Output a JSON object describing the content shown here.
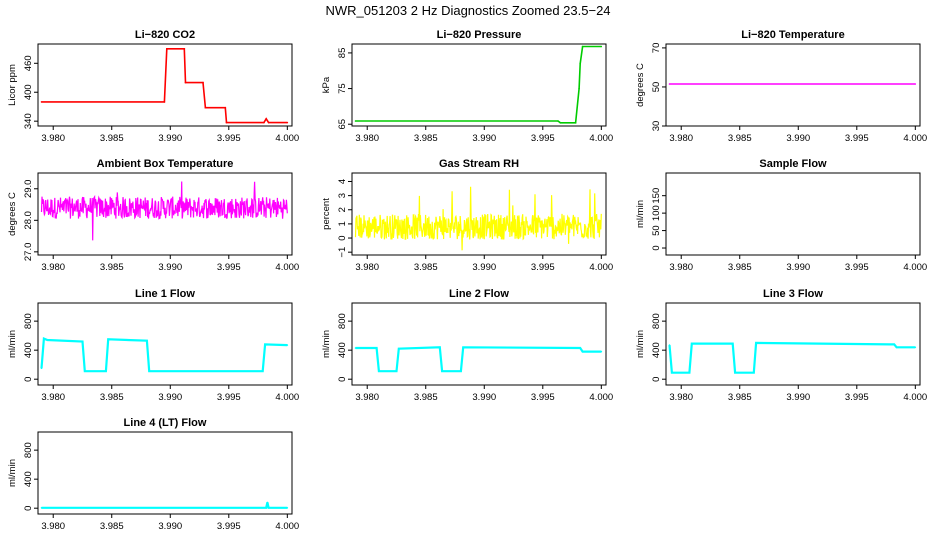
{
  "figure_title": "NWR_051203  2 Hz Diagnostics Zoomed 23.5−24",
  "chart_data": [
    {
      "type": "line",
      "title": "Li−820 CO2",
      "ylabel": "Licor ppm",
      "color": "#ff0000",
      "xlim": [
        3.9787,
        4.0004
      ],
      "ylim": [
        330,
        500
      ],
      "xticks": [
        "3.980",
        "3.985",
        "3.990",
        "3.995",
        "4.000"
      ],
      "yticks": [
        340,
        400,
        460
      ],
      "x": [
        3.979,
        3.9895,
        3.9897,
        3.9912,
        3.9913,
        3.9928,
        3.993,
        3.9947,
        3.9948,
        3.998,
        3.9982,
        3.9984,
        4.0
      ],
      "y": [
        380,
        380,
        490,
        490,
        420,
        420,
        368,
        368,
        337,
        337,
        345,
        337,
        337
      ]
    },
    {
      "type": "line",
      "title": "Li−820 Pressure",
      "ylabel": "kPa",
      "color": "#00cc00",
      "xlim": [
        3.9787,
        4.0004
      ],
      "ylim": [
        64.5,
        87.5
      ],
      "xticks": [
        "3.980",
        "3.985",
        "3.990",
        "3.995",
        "4.000"
      ],
      "yticks": [
        65,
        75,
        85
      ],
      "x": [
        3.979,
        3.9963,
        3.9965,
        3.9978,
        3.9981,
        3.9982,
        3.9984,
        4.0
      ],
      "y": [
        65.9,
        65.9,
        65.4,
        65.4,
        75,
        82,
        86.8,
        86.8
      ]
    },
    {
      "type": "line",
      "title": "Li−820 Temperature",
      "ylabel": "degrees C",
      "color": "#ff00ff",
      "xlim": [
        3.9787,
        4.0004
      ],
      "ylim": [
        30,
        72
      ],
      "xticks": [
        "3.980",
        "3.985",
        "3.990",
        "3.995",
        "4.000"
      ],
      "yticks": [
        30,
        50,
        70
      ],
      "x": [
        3.979,
        4.0
      ],
      "y": [
        51.5,
        51.5
      ]
    },
    {
      "type": "line",
      "title": "Ambient Box Temperature",
      "ylabel": "degrees C",
      "color": "#ff00ff",
      "noise": "dense",
      "xlim": [
        3.9787,
        4.0004
      ],
      "ylim": [
        26.9,
        29.5
      ],
      "xticks": [
        "3.980",
        "3.985",
        "3.990",
        "3.995",
        "4.000"
      ],
      "yticks": [
        27.0,
        28.0,
        29.0
      ],
      "x": [
        3.979,
        4.0
      ],
      "y": [
        28.4,
        28.4
      ],
      "range": [
        27.3,
        29.3
      ]
    },
    {
      "type": "line",
      "title": "Gas Stream RH",
      "ylabel": "percent",
      "color": "#ffff00",
      "noise": "dense",
      "xlim": [
        3.9787,
        4.0004
      ],
      "ylim": [
        -1.2,
        4.6
      ],
      "xticks": [
        "3.980",
        "3.985",
        "3.990",
        "3.995",
        "4.000"
      ],
      "yticks": [
        -1,
        0,
        1,
        2,
        3,
        4
      ],
      "x": [
        3.979,
        4.0
      ],
      "y": [
        0.8,
        0.8
      ],
      "range": [
        -0.9,
        4.3
      ]
    },
    {
      "type": "line",
      "title": "Sample Flow",
      "ylabel": "ml/min",
      "color": "#000000",
      "xlim": [
        3.9787,
        4.0004
      ],
      "ylim": [
        -20,
        215
      ],
      "xticks": [
        "3.980",
        "3.985",
        "3.990",
        "3.995",
        "4.000"
      ],
      "yticks": [
        0,
        50,
        100,
        150
      ],
      "x": [],
      "y": []
    },
    {
      "type": "line",
      "title": "Line 1 Flow",
      "ylabel": "ml/min",
      "color": "#00ffff",
      "xlim": [
        3.9787,
        4.0004
      ],
      "ylim": [
        -80,
        1050
      ],
      "xticks": [
        "3.980",
        "3.985",
        "3.990",
        "3.995",
        "4.000"
      ],
      "yticks": [
        0,
        400,
        800
      ],
      "x": [
        3.979,
        3.9792,
        3.9795,
        3.9825,
        3.9827,
        3.9845,
        3.9847,
        3.988,
        3.9882,
        3.9979,
        3.9981,
        4.0
      ],
      "y": [
        150,
        560,
        540,
        520,
        110,
        110,
        550,
        530,
        110,
        110,
        480,
        470
      ]
    },
    {
      "type": "line",
      "title": "Line 2 Flow",
      "ylabel": "ml/min",
      "color": "#00ffff",
      "xlim": [
        3.9787,
        4.0004
      ],
      "ylim": [
        -80,
        1050
      ],
      "xticks": [
        "3.980",
        "3.985",
        "3.990",
        "3.995",
        "4.000"
      ],
      "yticks": [
        0,
        400,
        800
      ],
      "x": [
        3.979,
        3.9808,
        3.981,
        3.9825,
        3.9827,
        3.9862,
        3.9864,
        3.988,
        3.9882,
        3.9982,
        3.9984,
        4.0
      ],
      "y": [
        430,
        430,
        110,
        110,
        420,
        440,
        110,
        110,
        440,
        430,
        380,
        380
      ]
    },
    {
      "type": "line",
      "title": "Line 3 Flow",
      "ylabel": "ml/min",
      "color": "#00ffff",
      "xlim": [
        3.9787,
        4.0004
      ],
      "ylim": [
        -80,
        1050
      ],
      "xticks": [
        "3.980",
        "3.985",
        "3.990",
        "3.995",
        "4.000"
      ],
      "yticks": [
        0,
        400,
        800
      ],
      "x": [
        3.979,
        3.9792,
        3.9807,
        3.9809,
        3.9844,
        3.9846,
        3.9862,
        3.9864,
        3.9982,
        3.9984,
        4.0
      ],
      "y": [
        470,
        90,
        90,
        490,
        490,
        90,
        90,
        500,
        480,
        440,
        440
      ]
    },
    {
      "type": "line",
      "title": "Line 4 (LT) Flow",
      "ylabel": "ml/min",
      "color": "#00ffff",
      "xlim": [
        3.9787,
        4.0004
      ],
      "ylim": [
        -80,
        1050
      ],
      "xticks": [
        "3.980",
        "3.985",
        "3.990",
        "3.995",
        "4.000"
      ],
      "yticks": [
        0,
        400,
        800
      ],
      "x": [
        3.979,
        3.9982,
        3.9983,
        3.9984,
        4.0
      ],
      "y": [
        5,
        5,
        80,
        5,
        5
      ]
    }
  ]
}
